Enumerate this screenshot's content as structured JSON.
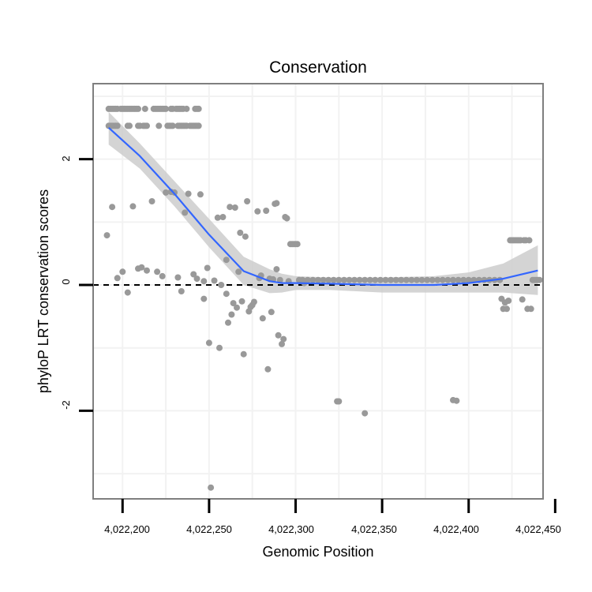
{
  "chart_data": {
    "type": "scatter",
    "title": "Conservation",
    "xlabel": "Genomic Position",
    "ylabel": "phyloP LRT conservation scores",
    "xlim": [
      4022183,
      4022443
    ],
    "ylim": [
      -3.4,
      3.2
    ],
    "x_ticks": [
      4022200,
      4022250,
      4022300,
      4022350,
      4022400,
      4022450
    ],
    "x_tick_labels": [
      "4,022,200",
      "4,022,250",
      "4,022,300",
      "4,022,350",
      "4,022,400",
      "4,022,450"
    ],
    "y_ticks": [
      -2,
      0,
      2
    ],
    "y_tick_labels": [
      "-2",
      "0",
      "2"
    ],
    "grid": true,
    "reference_line": {
      "y": 0,
      "style": "dashed"
    },
    "colors": {
      "points": "#999999",
      "smooth": "#3366ff",
      "ribbon": "#cccccc",
      "grid": "#f2f2f2",
      "frame": "#7f7f7f"
    },
    "series": [
      {
        "name": "scores",
        "points": [
          [
            4022192,
            2.8
          ],
          [
            4022193,
            2.8
          ],
          [
            4022194,
            2.8
          ],
          [
            4022195,
            2.8
          ],
          [
            4022196,
            2.8
          ],
          [
            4022197,
            2.8
          ],
          [
            4022199,
            2.8
          ],
          [
            4022200,
            2.8
          ],
          [
            4022201,
            2.8
          ],
          [
            4022202,
            2.8
          ],
          [
            4022203,
            2.8
          ],
          [
            4022204,
            2.8
          ],
          [
            4022205,
            2.8
          ],
          [
            4022206,
            2.8
          ],
          [
            4022207,
            2.8
          ],
          [
            4022208,
            2.8
          ],
          [
            4022209,
            2.8
          ],
          [
            4022213,
            2.8
          ],
          [
            4022218,
            2.8
          ],
          [
            4022219,
            2.8
          ],
          [
            4022220,
            2.8
          ],
          [
            4022221,
            2.8
          ],
          [
            4022222,
            2.8
          ],
          [
            4022223,
            2.8
          ],
          [
            4022224,
            2.8
          ],
          [
            4022225,
            2.8
          ],
          [
            4022228,
            2.8
          ],
          [
            4022229,
            2.8
          ],
          [
            4022231,
            2.8
          ],
          [
            4022232,
            2.8
          ],
          [
            4022233,
            2.8
          ],
          [
            4022234,
            2.8
          ],
          [
            4022235,
            2.8
          ],
          [
            4022237,
            2.8
          ],
          [
            4022242,
            2.8
          ],
          [
            4022243,
            2.8
          ],
          [
            4022244,
            2.8
          ],
          [
            4022192,
            2.53
          ],
          [
            4022193,
            2.53
          ],
          [
            4022194,
            2.53
          ],
          [
            4022195,
            2.53
          ],
          [
            4022196,
            2.53
          ],
          [
            4022197,
            2.53
          ],
          [
            4022203,
            2.53
          ],
          [
            4022204,
            2.53
          ],
          [
            4022209,
            2.53
          ],
          [
            4022210,
            2.53
          ],
          [
            4022212,
            2.53
          ],
          [
            4022213,
            2.53
          ],
          [
            4022214,
            2.53
          ],
          [
            4022221,
            2.53
          ],
          [
            4022226,
            2.53
          ],
          [
            4022227,
            2.53
          ],
          [
            4022228,
            2.53
          ],
          [
            4022229,
            2.53
          ],
          [
            4022232,
            2.53
          ],
          [
            4022233,
            2.53
          ],
          [
            4022234,
            2.53
          ],
          [
            4022235,
            2.53
          ],
          [
            4022236,
            2.53
          ],
          [
            4022237,
            2.53
          ],
          [
            4022239,
            2.53
          ],
          [
            4022240,
            2.53
          ],
          [
            4022241,
            2.53
          ],
          [
            4022242,
            2.53
          ],
          [
            4022243,
            2.53
          ],
          [
            4022244,
            2.53
          ],
          [
            4022191,
            0.79
          ],
          [
            4022194,
            1.24
          ],
          [
            4022197,
            0.11
          ],
          [
            4022200,
            0.21
          ],
          [
            4022203,
            -0.12
          ],
          [
            4022206,
            1.25
          ],
          [
            4022209,
            0.26
          ],
          [
            4022211,
            0.28
          ],
          [
            4022214,
            0.23
          ],
          [
            4022217,
            1.33
          ],
          [
            4022220,
            0.21
          ],
          [
            4022223,
            0.14
          ],
          [
            4022225,
            1.47
          ],
          [
            4022228,
            1.48
          ],
          [
            4022230,
            1.47
          ],
          [
            4022232,
            0.12
          ],
          [
            4022234,
            -0.1
          ],
          [
            4022236,
            1.15
          ],
          [
            4022238,
            1.45
          ],
          [
            4022241,
            0.17
          ],
          [
            4022243,
            0.1
          ],
          [
            4022245,
            1.44
          ],
          [
            4022247,
            0.06
          ],
          [
            4022247,
            -0.22
          ],
          [
            4022249,
            0.27
          ],
          [
            4022250,
            -0.92
          ],
          [
            4022251,
            -3.22
          ],
          [
            4022253,
            0.07
          ],
          [
            4022255,
            1.07
          ],
          [
            4022256,
            -1.0
          ],
          [
            4022257,
            0.0
          ],
          [
            4022258,
            1.08
          ],
          [
            4022260,
            -0.14
          ],
          [
            4022260,
            0.4
          ],
          [
            4022261,
            -0.6
          ],
          [
            4022262,
            1.24
          ],
          [
            4022263,
            -0.47
          ],
          [
            4022264,
            -0.29
          ],
          [
            4022265,
            1.23
          ],
          [
            4022266,
            -0.36
          ],
          [
            4022267,
            0.21
          ],
          [
            4022268,
            0.83
          ],
          [
            4022269,
            -0.26
          ],
          [
            4022270,
            -1.1
          ],
          [
            4022271,
            0.77
          ],
          [
            4022272,
            1.33
          ],
          [
            4022273,
            -0.42
          ],
          [
            4022274,
            -0.35
          ],
          [
            4022275,
            -0.32
          ],
          [
            4022276,
            -0.27
          ],
          [
            4022278,
            1.17
          ],
          [
            4022279,
            0.11
          ],
          [
            4022280,
            0.15
          ],
          [
            4022281,
            -0.53
          ],
          [
            4022283,
            1.18
          ],
          [
            4022284,
            -1.34
          ],
          [
            4022285,
            0.1
          ],
          [
            4022286,
            -0.43
          ],
          [
            4022287,
            0.09
          ],
          [
            4022288,
            1.29
          ],
          [
            4022289,
            0.25
          ],
          [
            4022289,
            1.3
          ],
          [
            4022290,
            -0.8
          ],
          [
            4022291,
            0.08
          ],
          [
            4022292,
            -0.94
          ],
          [
            4022293,
            -0.86
          ],
          [
            4022294,
            1.08
          ],
          [
            4022295,
            1.06
          ],
          [
            4022296,
            0.06
          ],
          [
            4022297,
            0.65
          ],
          [
            4022298,
            0.65
          ],
          [
            4022299,
            0.65
          ],
          [
            4022300,
            0.65
          ],
          [
            4022301,
            0.65
          ],
          [
            4022302,
            0.08
          ],
          [
            4022305,
            0.03
          ],
          [
            4022304,
            0.08
          ],
          [
            4022307,
            0.08
          ],
          [
            4022310,
            0.08
          ],
          [
            4022313,
            0.08
          ],
          [
            4022316,
            0.08
          ],
          [
            4022319,
            0.08
          ],
          [
            4022322,
            0.08
          ],
          [
            4022325,
            0.08
          ],
          [
            4022328,
            0.08
          ],
          [
            4022331,
            0.08
          ],
          [
            4022334,
            0.08
          ],
          [
            4022337,
            0.08
          ],
          [
            4022340,
            0.08
          ],
          [
            4022343,
            0.08
          ],
          [
            4022346,
            0.08
          ],
          [
            4022349,
            0.08
          ],
          [
            4022352,
            0.08
          ],
          [
            4022355,
            0.08
          ],
          [
            4022358,
            0.08
          ],
          [
            4022361,
            0.08
          ],
          [
            4022364,
            0.08
          ],
          [
            4022367,
            0.08
          ],
          [
            4022370,
            0.08
          ],
          [
            4022373,
            0.08
          ],
          [
            4022376,
            0.08
          ],
          [
            4022379,
            0.08
          ],
          [
            4022382,
            0.08
          ],
          [
            4022385,
            0.08
          ],
          [
            4022388,
            0.08
          ],
          [
            4022391,
            0.08
          ],
          [
            4022394,
            0.08
          ],
          [
            4022397,
            0.08
          ],
          [
            4022400,
            0.08
          ],
          [
            4022403,
            0.08
          ],
          [
            4022406,
            0.08
          ],
          [
            4022409,
            0.08
          ],
          [
            4022412,
            0.08
          ],
          [
            4022415,
            0.08
          ],
          [
            4022418,
            0.08
          ],
          [
            4022324,
            -1.85
          ],
          [
            4022325,
            -1.85
          ],
          [
            4022340,
            -2.04
          ],
          [
            4022391,
            -1.83
          ],
          [
            4022393,
            -1.84
          ],
          [
            4022419,
            -0.22
          ],
          [
            4022420,
            -0.38
          ],
          [
            4022421,
            -0.28
          ],
          [
            4022422,
            -0.38
          ],
          [
            4022423,
            -0.25
          ],
          [
            4022424,
            0.71
          ],
          [
            4022425,
            0.71
          ],
          [
            4022426,
            0.71
          ],
          [
            4022427,
            0.71
          ],
          [
            4022428,
            0.71
          ],
          [
            4022429,
            0.71
          ],
          [
            4022430,
            0.71
          ],
          [
            4022431,
            -0.23
          ],
          [
            4022432,
            0.71
          ],
          [
            4022433,
            0.71
          ],
          [
            4022434,
            -0.38
          ],
          [
            4022435,
            0.71
          ],
          [
            4022436,
            -0.38
          ],
          [
            4022437,
            0.08
          ],
          [
            4022438,
            0.08
          ],
          [
            4022439,
            0.08
          ],
          [
            4022440,
            0.08
          ],
          [
            4022441,
            0.08
          ]
        ]
      }
    ],
    "smooth": {
      "x": [
        4022192,
        4022210,
        4022230,
        4022250,
        4022270,
        4022285,
        4022292,
        4022300,
        4022320,
        4022350,
        4022380,
        4022400,
        4022420,
        4022440
      ],
      "y": [
        2.5,
        2.05,
        1.45,
        0.8,
        0.22,
        0.06,
        0.03,
        0.03,
        0.02,
        0.0,
        0.0,
        0.03,
        0.1,
        0.23
      ],
      "upper": [
        2.75,
        2.25,
        1.65,
        1.05,
        0.45,
        0.25,
        0.18,
        0.14,
        0.12,
        0.12,
        0.14,
        0.2,
        0.34,
        0.63
      ],
      "lower": [
        2.23,
        1.85,
        1.25,
        0.6,
        0.0,
        -0.13,
        -0.12,
        -0.08,
        -0.08,
        -0.12,
        -0.12,
        -0.12,
        -0.12,
        -0.16
      ]
    }
  }
}
